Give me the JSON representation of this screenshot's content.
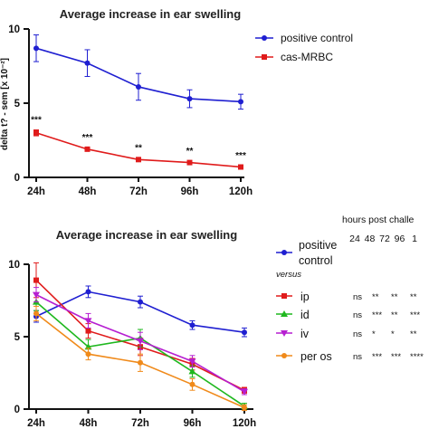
{
  "chart_data": [
    {
      "type": "line",
      "title": "Average increase in ear swelling",
      "ylabel": "delta t? - sem [x 10⁻²]",
      "xlabel": "",
      "categories": [
        "24h",
        "48h",
        "72h",
        "96h",
        "120h"
      ],
      "ylim": [
        0,
        10
      ],
      "yticks": [
        "0",
        "5",
        "10"
      ],
      "grid": false,
      "legend_position": "top-right",
      "series": [
        {
          "name": "positive control",
          "color": "#1f1fd1",
          "marker": "circle",
          "values": [
            8.7,
            7.7,
            6.1,
            5.3,
            5.1
          ],
          "errors": [
            0.9,
            0.9,
            0.9,
            0.6,
            0.5
          ]
        },
        {
          "name": "cas-MRBC",
          "color": "#e01b1b",
          "marker": "square",
          "values": [
            3.0,
            1.9,
            1.2,
            1.0,
            0.7
          ],
          "errors": [
            0.2,
            0.1,
            0.1,
            0.1,
            0.1
          ]
        }
      ],
      "significance": [
        "***",
        "***",
        "**",
        "**",
        "***"
      ]
    },
    {
      "type": "line",
      "title": "Average increase in ear swelling",
      "xlabel": "",
      "categories": [
        "24h",
        "48h",
        "72h",
        "96h",
        "120h"
      ],
      "ylim": [
        0,
        10
      ],
      "yticks": [
        "0",
        "5",
        "10"
      ],
      "grid": false,
      "legend_position": "right",
      "series": [
        {
          "name": "positive control",
          "color": "#1f1fd1",
          "marker": "circle",
          "values": [
            6.4,
            8.1,
            7.4,
            5.8,
            5.3
          ],
          "errors": [
            0.4,
            0.4,
            0.4,
            0.3,
            0.3
          ]
        },
        {
          "name": "ip",
          "color": "#e01b1b",
          "marker": "square",
          "values": [
            8.9,
            5.4,
            4.3,
            3.1,
            1.3
          ],
          "errors": [
            1.2,
            0.5,
            0.6,
            0.4,
            0.2
          ]
        },
        {
          "name": "id",
          "color": "#1fb81f",
          "marker": "triangle-up",
          "values": [
            7.4,
            4.3,
            4.9,
            2.6,
            0.2
          ],
          "errors": [
            0.6,
            0.5,
            0.6,
            0.4,
            0.2
          ]
        },
        {
          "name": "iv",
          "color": "#b61fd1",
          "marker": "triangle-down",
          "values": [
            7.9,
            6.1,
            4.7,
            3.3,
            1.2
          ],
          "errors": [
            0.5,
            0.5,
            0.6,
            0.4,
            0.2
          ]
        },
        {
          "name": "per os",
          "color": "#f08a1a",
          "marker": "circle",
          "values": [
            6.6,
            3.8,
            3.2,
            1.7,
            0.1
          ],
          "errors": [
            0.5,
            0.4,
            0.6,
            0.4,
            0.2
          ]
        }
      ]
    }
  ],
  "legend2": {
    "versus_label": "versus",
    "table_title": "hours post challe",
    "table_headers": [
      "24",
      "48",
      "72",
      "96",
      "1"
    ],
    "table_rows": [
      {
        "name": "ip",
        "cells": [
          "ns",
          "**",
          "**",
          "**"
        ]
      },
      {
        "name": "id",
        "cells": [
          "ns",
          "***",
          "**",
          "***"
        ]
      },
      {
        "name": "iv",
        "cells": [
          "ns",
          "*",
          "*",
          "**"
        ]
      },
      {
        "name": "per os",
        "cells": [
          "ns",
          "***",
          "***",
          "****"
        ]
      }
    ]
  }
}
